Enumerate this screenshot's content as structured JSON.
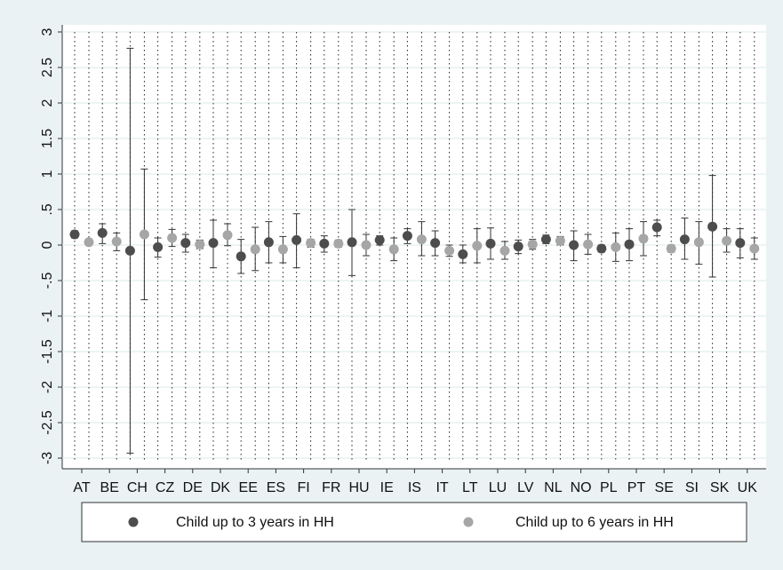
{
  "chart_data": {
    "type": "errorbar",
    "categories": [
      "AT",
      "BE",
      "CH",
      "CZ",
      "DE",
      "DK",
      "EE",
      "ES",
      "FI",
      "FR",
      "HU",
      "IE",
      "IS",
      "IT",
      "LT",
      "LU",
      "LV",
      "NL",
      "NO",
      "PL",
      "PT",
      "SE",
      "SI",
      "SK",
      "UK"
    ],
    "series": [
      {
        "name": "Child up to 3 years in HH",
        "color": "#4d4d4d",
        "values": [
          0.15,
          0.17,
          -0.08,
          -0.03,
          0.03,
          0.03,
          -0.16,
          0.04,
          0.07,
          0.02,
          0.04,
          0.07,
          0.13,
          0.03,
          -0.13,
          0.02,
          -0.02,
          0.08,
          0,
          -0.05,
          0.01,
          0.25,
          0.08,
          0.26,
          0.03
        ],
        "lower": [
          0.1,
          0.02,
          -2.93,
          -0.17,
          -0.1,
          -0.32,
          -0.4,
          -0.25,
          -0.32,
          -0.1,
          -0.43,
          0,
          0.02,
          -0.15,
          -0.25,
          -0.2,
          -0.12,
          0.02,
          -0.22,
          -0.1,
          -0.22,
          0.13,
          -0.2,
          -0.45,
          -0.18
        ],
        "upper": [
          0.2,
          0.3,
          2.77,
          0.1,
          0.15,
          0.35,
          0.08,
          0.33,
          0.44,
          0.13,
          0.5,
          0.13,
          0.23,
          0.2,
          0,
          0.24,
          0.07,
          0.14,
          0.2,
          0,
          0.23,
          0.35,
          0.38,
          0.98,
          0.23
        ]
      },
      {
        "name": "Child up to 6 years in HH",
        "color": "#a6a6a6",
        "values": [
          0.04,
          0.05,
          0.15,
          0.1,
          0.01,
          0.14,
          -0.06,
          -0.06,
          0.03,
          0.02,
          0,
          -0.06,
          0.08,
          -0.08,
          -0.01,
          -0.08,
          0.01,
          0.06,
          0.01,
          -0.03,
          0.09,
          -0.05,
          0.04,
          0.06,
          -0.05
        ],
        "lower": [
          0.01,
          -0.08,
          -0.77,
          -0.02,
          -0.05,
          -0.01,
          -0.36,
          -0.25,
          -0.03,
          -0.03,
          -0.15,
          -0.22,
          -0.15,
          -0.16,
          -0.25,
          -0.2,
          -0.06,
          0,
          -0.13,
          -0.23,
          -0.15,
          -0.1,
          -0.27,
          -0.1,
          -0.2
        ],
        "upper": [
          0.07,
          0.17,
          1.07,
          0.22,
          0.07,
          0.3,
          0.25,
          0.12,
          0.08,
          0.07,
          0.15,
          0.1,
          0.33,
          0,
          0.23,
          0.05,
          0.08,
          0.12,
          0.15,
          0.17,
          0.33,
          0,
          0.33,
          0.23,
          0.1
        ]
      }
    ],
    "ylim": [
      -3.15,
      3.1
    ],
    "yticks": [
      3,
      2.5,
      2,
      1.5,
      1,
      {
        "value": 0.5,
        "label": ".5"
      },
      0,
      {
        "value": -0.5,
        "label": "-.5"
      },
      -1,
      -1.5,
      -2,
      -2.5,
      -3
    ],
    "grid": true
  }
}
